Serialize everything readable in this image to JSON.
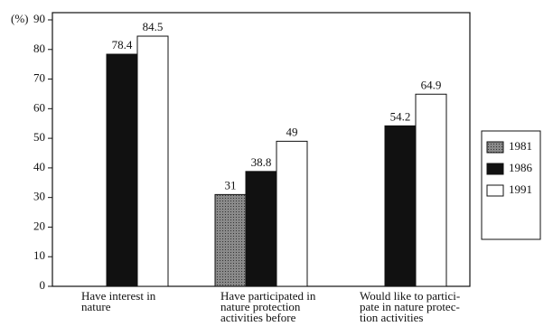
{
  "chart_data": {
    "type": "bar",
    "ylabel": "(%)",
    "categories": [
      [
        "Have interest in",
        "nature"
      ],
      [
        "Have participated in",
        "nature protection",
        "activities before"
      ],
      [
        "Would like to partici-",
        "pate in nature protec-",
        "tion activities"
      ]
    ],
    "series": [
      {
        "name": "1981",
        "color": "#8a8a8a",
        "values": [
          null,
          31,
          null
        ]
      },
      {
        "name": "1986",
        "color": "#111111",
        "values": [
          78.4,
          38.8,
          54.2
        ]
      },
      {
        "name": "1991",
        "color": "#ffffff",
        "values": [
          84.5,
          49,
          64.9
        ]
      }
    ],
    "ylim": [
      0,
      90
    ],
    "yticks": [
      0,
      10,
      20,
      30,
      40,
      50,
      60,
      70,
      80,
      90
    ],
    "legend": "right"
  }
}
